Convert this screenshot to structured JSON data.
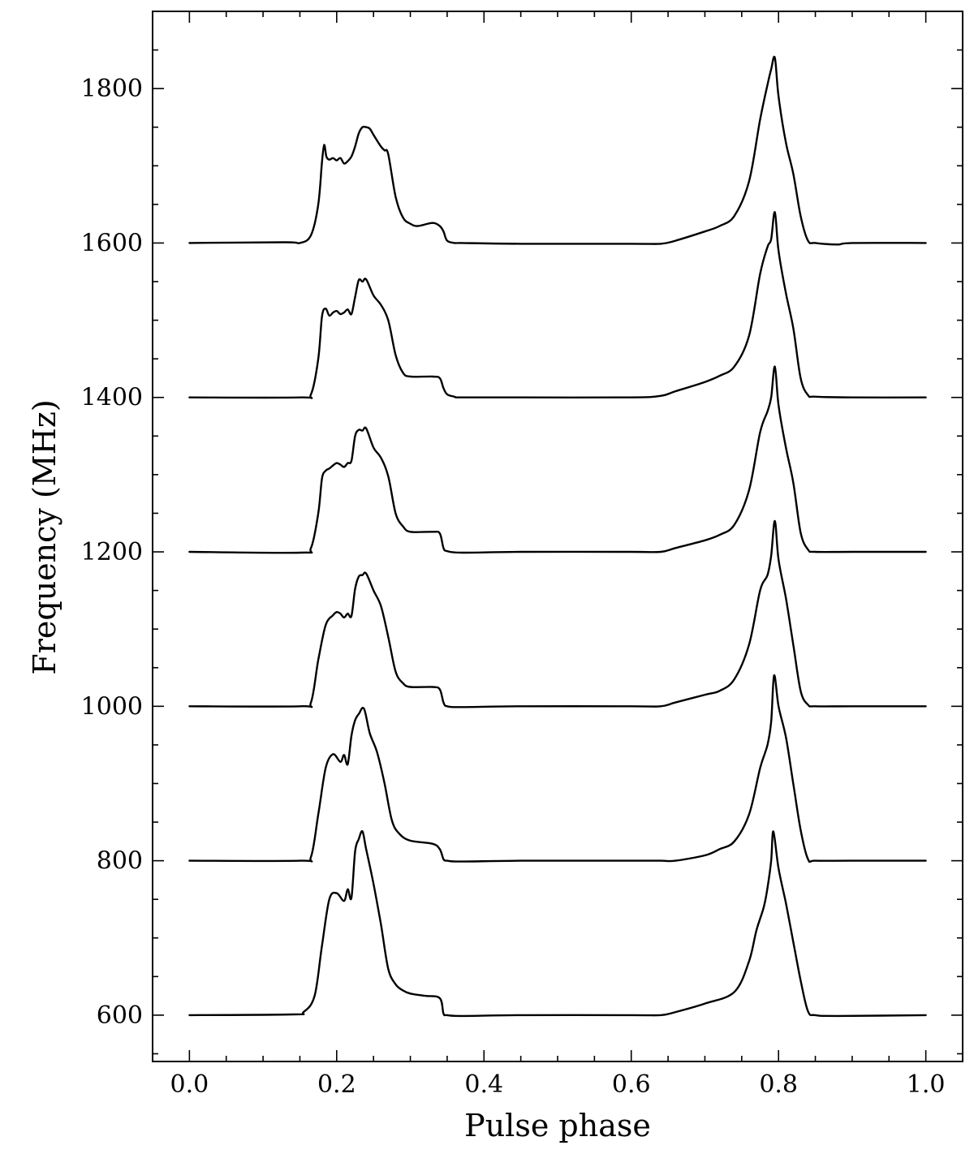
{
  "chart_data": {
    "type": "line",
    "title": "",
    "xlabel": "Pulse phase",
    "ylabel": "Frequency (MHz)",
    "xlim": [
      -0.05,
      1.05
    ],
    "ylim": [
      540,
      1900
    ],
    "x_ticks": [
      "0.0",
      "0.2",
      "0.4",
      "0.6",
      "0.8",
      "1.0"
    ],
    "x_tick_values": [
      0.0,
      0.2,
      0.4,
      0.6,
      0.8,
      1.0
    ],
    "y_ticks": [
      "600",
      "800",
      "1000",
      "1200",
      "1400",
      "1600",
      "1800"
    ],
    "y_tick_values": [
      600,
      800,
      1000,
      1200,
      1400,
      1600,
      1800
    ],
    "grid": false,
    "legend": "none",
    "line_color": "#000000",
    "series": [
      {
        "baseline": 600,
        "x": [
          0.0,
          0.14,
          0.155,
          0.17,
          0.18,
          0.19,
          0.2,
          0.21,
          0.215,
          0.22,
          0.225,
          0.23,
          0.235,
          0.24,
          0.25,
          0.26,
          0.27,
          0.28,
          0.29,
          0.3,
          0.32,
          0.34,
          0.345,
          0.35,
          0.37,
          0.45,
          0.6,
          0.64,
          0.66,
          0.7,
          0.74,
          0.76,
          0.77,
          0.78,
          0.785,
          0.79,
          0.793,
          0.8,
          0.81,
          0.82,
          0.83,
          0.84,
          0.85,
          0.88,
          1.0
        ],
        "y": [
          600,
          601,
          604,
          625,
          690,
          750,
          758,
          748,
          763,
          752,
          812,
          828,
          838,
          815,
          770,
          718,
          660,
          640,
          632,
          628,
          625,
          622,
          602,
          600,
          599,
          600,
          600,
          600,
          604,
          615,
          630,
          670,
          710,
          740,
          765,
          800,
          838,
          790,
          745,
          695,
          645,
          605,
          600,
          599,
          600
        ]
      },
      {
        "baseline": 800,
        "x": [
          0.0,
          0.15,
          0.165,
          0.175,
          0.185,
          0.195,
          0.205,
          0.21,
          0.215,
          0.22,
          0.225,
          0.23,
          0.237,
          0.245,
          0.255,
          0.265,
          0.275,
          0.285,
          0.3,
          0.33,
          0.34,
          0.345,
          0.35,
          0.37,
          0.45,
          0.6,
          0.64,
          0.66,
          0.7,
          0.72,
          0.74,
          0.76,
          0.775,
          0.785,
          0.79,
          0.794,
          0.8,
          0.81,
          0.82,
          0.83,
          0.84,
          0.85,
          0.9,
          1.0
        ],
        "y": [
          800,
          800,
          805,
          860,
          920,
          938,
          928,
          937,
          925,
          962,
          982,
          990,
          997,
          965,
          940,
          900,
          852,
          835,
          826,
          822,
          815,
          802,
          800,
          799,
          800,
          800,
          800,
          800,
          807,
          815,
          825,
          860,
          920,
          950,
          980,
          1040,
          1000,
          960,
          900,
          840,
          802,
          800,
          800,
          800
        ]
      },
      {
        "baseline": 1000,
        "x": [
          0.0,
          0.15,
          0.165,
          0.175,
          0.185,
          0.195,
          0.2,
          0.205,
          0.21,
          0.215,
          0.22,
          0.225,
          0.23,
          0.235,
          0.24,
          0.25,
          0.26,
          0.27,
          0.28,
          0.29,
          0.3,
          0.33,
          0.34,
          0.345,
          0.35,
          0.37,
          0.45,
          0.6,
          0.64,
          0.66,
          0.7,
          0.72,
          0.74,
          0.76,
          0.775,
          0.785,
          0.79,
          0.795,
          0.8,
          0.81,
          0.82,
          0.83,
          0.84,
          0.85,
          0.9,
          1.0
        ],
        "y": [
          1000,
          1000,
          1005,
          1060,
          1105,
          1118,
          1122,
          1120,
          1115,
          1120,
          1117,
          1152,
          1168,
          1170,
          1172,
          1150,
          1130,
          1090,
          1045,
          1030,
          1025,
          1025,
          1022,
          1005,
          1000,
          999,
          1000,
          1000,
          1000,
          1005,
          1015,
          1020,
          1035,
          1080,
          1150,
          1170,
          1195,
          1240,
          1190,
          1140,
          1080,
          1020,
          1002,
          1000,
          1000,
          1000
        ]
      },
      {
        "baseline": 1200,
        "x": [
          0.0,
          0.15,
          0.165,
          0.175,
          0.18,
          0.185,
          0.19,
          0.195,
          0.2,
          0.205,
          0.21,
          0.215,
          0.22,
          0.225,
          0.23,
          0.235,
          0.24,
          0.25,
          0.26,
          0.27,
          0.28,
          0.29,
          0.3,
          0.33,
          0.34,
          0.345,
          0.35,
          0.37,
          0.45,
          0.6,
          0.64,
          0.66,
          0.7,
          0.72,
          0.74,
          0.76,
          0.775,
          0.785,
          0.79,
          0.795,
          0.8,
          0.81,
          0.82,
          0.83,
          0.84,
          0.85,
          0.9,
          1.0
        ],
        "y": [
          1200,
          1199,
          1205,
          1250,
          1295,
          1305,
          1308,
          1312,
          1315,
          1313,
          1310,
          1315,
          1318,
          1350,
          1358,
          1357,
          1360,
          1335,
          1322,
          1298,
          1250,
          1233,
          1226,
          1226,
          1224,
          1205,
          1201,
          1199,
          1200,
          1200,
          1200,
          1205,
          1215,
          1222,
          1235,
          1280,
          1355,
          1382,
          1400,
          1440,
          1390,
          1335,
          1290,
          1225,
          1203,
          1200,
          1200,
          1200
        ]
      },
      {
        "baseline": 1400,
        "x": [
          0.0,
          0.15,
          0.165,
          0.175,
          0.18,
          0.185,
          0.19,
          0.195,
          0.2,
          0.205,
          0.21,
          0.215,
          0.22,
          0.225,
          0.23,
          0.235,
          0.24,
          0.25,
          0.26,
          0.27,
          0.28,
          0.29,
          0.3,
          0.33,
          0.34,
          0.345,
          0.35,
          0.36,
          0.37,
          0.45,
          0.6,
          0.64,
          0.66,
          0.7,
          0.72,
          0.74,
          0.76,
          0.775,
          0.785,
          0.79,
          0.795,
          0.8,
          0.81,
          0.82,
          0.83,
          0.84,
          0.85,
          0.9,
          1.0
        ],
        "y": [
          1400,
          1400,
          1404,
          1450,
          1505,
          1515,
          1506,
          1510,
          1512,
          1508,
          1510,
          1514,
          1508,
          1530,
          1552,
          1550,
          1553,
          1532,
          1520,
          1500,
          1455,
          1432,
          1427,
          1427,
          1425,
          1412,
          1404,
          1401,
          1400,
          1400,
          1400,
          1402,
          1408,
          1420,
          1428,
          1440,
          1480,
          1560,
          1595,
          1605,
          1640,
          1590,
          1535,
          1490,
          1425,
          1403,
          1401,
          1400,
          1400
        ]
      },
      {
        "baseline": 1600,
        "x": [
          0.0,
          0.13,
          0.15,
          0.165,
          0.175,
          0.18,
          0.183,
          0.186,
          0.19,
          0.195,
          0.2,
          0.205,
          0.21,
          0.215,
          0.22,
          0.225,
          0.23,
          0.235,
          0.24,
          0.245,
          0.25,
          0.26,
          0.265,
          0.27,
          0.28,
          0.29,
          0.3,
          0.31,
          0.33,
          0.34,
          0.345,
          0.35,
          0.36,
          0.37,
          0.45,
          0.6,
          0.64,
          0.66,
          0.7,
          0.72,
          0.74,
          0.76,
          0.775,
          0.785,
          0.79,
          0.795,
          0.8,
          0.81,
          0.82,
          0.83,
          0.84,
          0.85,
          0.88,
          0.9,
          1.0
        ],
        "y": [
          1600,
          1601,
          1600,
          1610,
          1650,
          1705,
          1727,
          1712,
          1708,
          1710,
          1707,
          1710,
          1703,
          1706,
          1712,
          1725,
          1742,
          1750,
          1750,
          1748,
          1740,
          1725,
          1720,
          1715,
          1660,
          1633,
          1625,
          1622,
          1626,
          1622,
          1615,
          1603,
          1600,
          1600,
          1599,
          1599,
          1599,
          1603,
          1615,
          1622,
          1635,
          1680,
          1760,
          1805,
          1825,
          1840,
          1790,
          1730,
          1690,
          1635,
          1603,
          1600,
          1598,
          1600,
          1600
        ]
      }
    ]
  }
}
